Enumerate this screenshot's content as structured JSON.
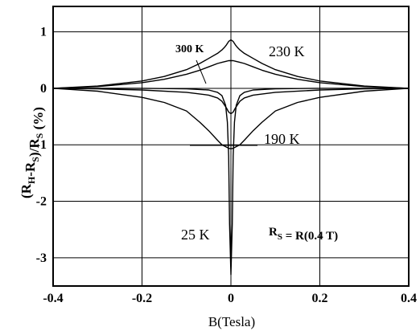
{
  "chart_data": {
    "type": "line",
    "xlabel": "B(Tesla)",
    "ylabel": {
      "parts": [
        {
          "t": "(R",
          "s": false
        },
        {
          "t": "H",
          "s": true
        },
        {
          "t": "-R",
          "s": false
        },
        {
          "t": "S",
          "s": true
        },
        {
          "t": ")/R",
          "s": false
        },
        {
          "t": "S",
          "s": true
        },
        {
          "t": " (%)",
          "s": false
        }
      ]
    },
    "xlim": [
      -0.4,
      0.4
    ],
    "ylim": [
      -3.5,
      1.45
    ],
    "xticks": [
      -0.4,
      -0.2,
      0,
      0.2,
      0.4
    ],
    "xtick_labels": [
      "-0.4",
      "-0.2",
      "0",
      "0.2",
      "0.4"
    ],
    "yticks": [
      1,
      0,
      -1,
      -2,
      -3
    ],
    "ytick_labels": [
      "1",
      "0",
      "-1",
      "-2",
      "-3"
    ],
    "grid": true,
    "series": [
      {
        "name": "300 K",
        "x": [
          -0.4,
          -0.3,
          -0.2,
          -0.15,
          -0.1,
          -0.07,
          -0.05,
          -0.03,
          -0.02,
          -0.01,
          -0.005,
          0,
          0.005,
          0.01,
          0.02,
          0.03,
          0.05,
          0.07,
          0.1,
          0.15,
          0.2,
          0.3,
          0.4
        ],
        "y": [
          0.0,
          0.03,
          0.1,
          0.16,
          0.25,
          0.32,
          0.38,
          0.44,
          0.46,
          0.48,
          0.49,
          0.49,
          0.49,
          0.48,
          0.46,
          0.44,
          0.38,
          0.32,
          0.25,
          0.16,
          0.1,
          0.03,
          0.0
        ]
      },
      {
        "name": "230 K",
        "x": [
          -0.4,
          -0.3,
          -0.2,
          -0.15,
          -0.1,
          -0.07,
          -0.05,
          -0.03,
          -0.02,
          -0.015,
          -0.01,
          -0.005,
          0,
          0.005,
          0.01,
          0.015,
          0.02,
          0.03,
          0.05,
          0.07,
          0.1,
          0.15,
          0.2,
          0.3,
          0.4
        ],
        "y": [
          0.0,
          0.04,
          0.13,
          0.21,
          0.33,
          0.44,
          0.53,
          0.62,
          0.68,
          0.72,
          0.77,
          0.83,
          0.86,
          0.83,
          0.77,
          0.72,
          0.68,
          0.62,
          0.53,
          0.44,
          0.33,
          0.21,
          0.13,
          0.04,
          0.0
        ]
      },
      {
        "name": "190 K",
        "x": [
          -0.4,
          -0.3,
          -0.2,
          -0.15,
          -0.1,
          -0.07,
          -0.05,
          -0.03,
          -0.02,
          -0.01,
          -0.005,
          0,
          0.005,
          0.01,
          0.02,
          0.03,
          0.05,
          0.07,
          0.1,
          0.15,
          0.2,
          0.3,
          0.4
        ],
        "y": [
          0.0,
          -0.05,
          -0.16,
          -0.25,
          -0.4,
          -0.6,
          -0.75,
          -0.92,
          -1.0,
          -1.04,
          -1.06,
          -1.07,
          -1.06,
          -1.04,
          -1.0,
          -0.92,
          -0.75,
          -0.6,
          -0.4,
          -0.25,
          -0.16,
          -0.05,
          0.0
        ]
      },
      {
        "name": "",
        "x": [
          -0.4,
          -0.3,
          -0.2,
          -0.1,
          -0.05,
          -0.03,
          -0.02,
          -0.01,
          -0.005,
          0,
          0.005,
          0.01,
          0.02,
          0.03,
          0.05,
          0.1,
          0.2,
          0.3,
          0.4
        ],
        "y": [
          0.0,
          -0.01,
          -0.03,
          -0.07,
          -0.12,
          -0.17,
          -0.23,
          -0.35,
          -0.42,
          -0.45,
          -0.42,
          -0.35,
          -0.23,
          -0.17,
          -0.12,
          -0.07,
          -0.03,
          -0.01,
          0.0
        ]
      },
      {
        "name": "25 K",
        "x": [
          -0.4,
          -0.2,
          -0.1,
          -0.05,
          -0.03,
          -0.02,
          -0.012,
          -0.008,
          -0.005,
          -0.003,
          0,
          0.003,
          0.005,
          0.008,
          0.012,
          0.02,
          0.03,
          0.05,
          0.1,
          0.2,
          0.4
        ],
        "y": [
          0.0,
          0.0,
          -0.01,
          -0.03,
          -0.07,
          -0.13,
          -0.3,
          -0.6,
          -1.2,
          -2.4,
          -3.3,
          -2.4,
          -1.2,
          -0.6,
          -0.3,
          -0.13,
          -0.07,
          -0.03,
          -0.01,
          0.0,
          0.0
        ]
      }
    ],
    "annotations": {
      "label_300": "300 K",
      "label_230": "230 K",
      "label_190": "190 K",
      "label_25": "25 K",
      "rs_parts": [
        {
          "t": "R",
          "s": false
        },
        {
          "t": "S",
          "s": true
        },
        {
          "t": " = R(0.4 T)",
          "s": false
        }
      ]
    }
  }
}
